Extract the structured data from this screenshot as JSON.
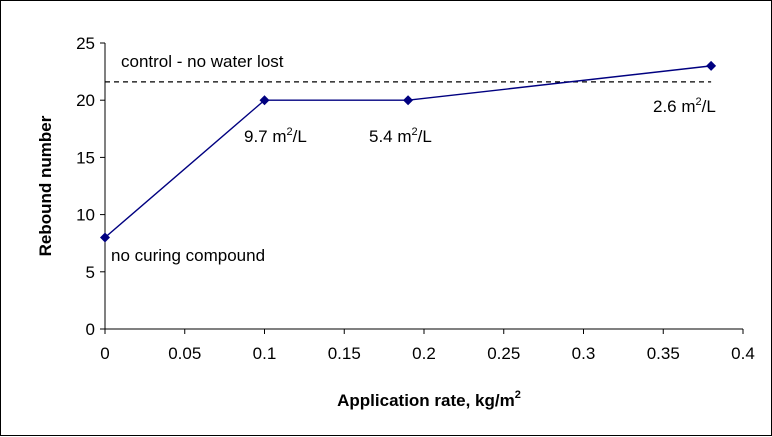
{
  "chart_data": {
    "type": "line",
    "xlabel": "Application rate, kg/m",
    "xlabel_sup": "2",
    "ylabel": "Rebound number",
    "xlim": [
      0,
      0.4
    ],
    "ylim": [
      0,
      25
    ],
    "x_ticks": [
      "0",
      "0.05",
      "0.1",
      "0.15",
      "0.2",
      "0.25",
      "0.3",
      "0.35",
      "0.4"
    ],
    "y_ticks": [
      "0",
      "5",
      "10",
      "15",
      "20",
      "25"
    ],
    "grid": false,
    "legend": "none",
    "series": [
      {
        "x": [
          0,
          0.1,
          0.19,
          0.38
        ],
        "y": [
          8,
          20,
          20,
          23
        ],
        "color": "#000080",
        "marker": "diamond"
      }
    ],
    "reference_line": {
      "y": 21.6,
      "x_range": [
        0,
        0.38
      ],
      "style": "dashed",
      "color": "#000000",
      "label": "control - no water lost"
    },
    "point_labels": [
      {
        "text": "no curing compound",
        "sup": "",
        "tail": ""
      },
      {
        "text": "9.7 m",
        "sup": "2",
        "tail": "/L"
      },
      {
        "text": "5.4 m",
        "sup": "2",
        "tail": "/L"
      },
      {
        "text": "2.6 m",
        "sup": "2",
        "tail": "/L"
      }
    ]
  }
}
